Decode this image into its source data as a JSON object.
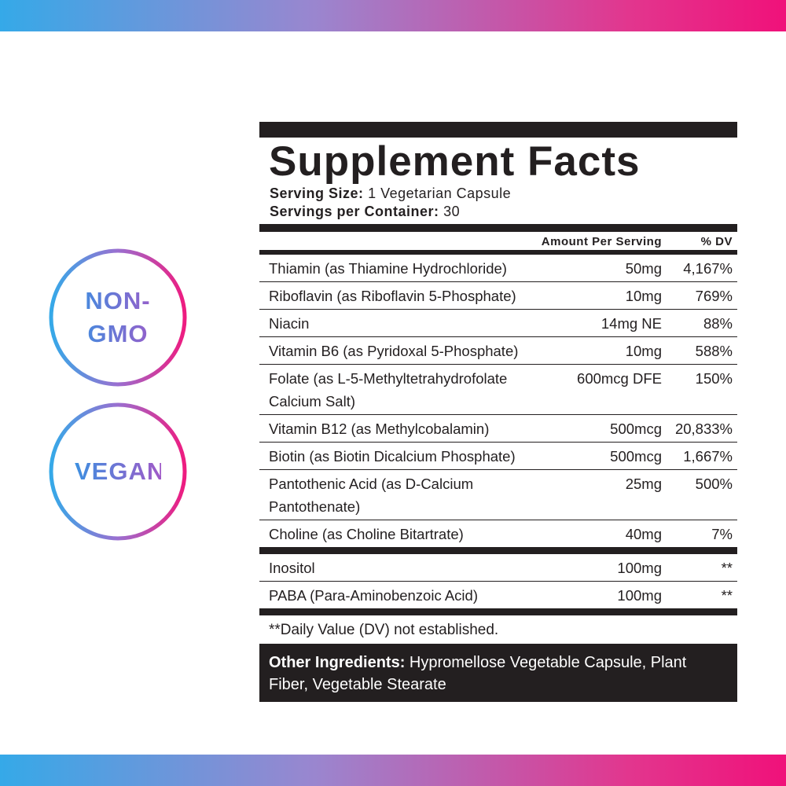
{
  "badges": [
    "NON-GMO",
    "VEGAN"
  ],
  "facts": {
    "title": "Supplement Facts",
    "serving_size_label": "Serving Size:",
    "serving_size": "1 Vegetarian Capsule",
    "servings_label": "Servings per Container:",
    "servings": "30",
    "header_amount": "Amount Per Serving",
    "header_dv": "% DV",
    "nutrients": [
      [
        "Thiamin (as Thiamine Hydrochloride)",
        "50mg",
        "4,167%"
      ],
      [
        "Riboflavin (as Riboflavin 5-Phosphate)",
        "10mg",
        "769%"
      ],
      [
        "Niacin",
        "14mg NE",
        "88%"
      ],
      [
        "Vitamin B6 (as Pyridoxal 5-Phosphate)",
        "10mg",
        "588%"
      ],
      [
        "Folate (as L-5-Methyltetrahydrofolate Calcium Salt)",
        "600mcg DFE",
        "150%"
      ],
      [
        "Vitamin B12 (as Methylcobalamin)",
        "500mcg",
        "20,833%"
      ],
      [
        "Biotin (as Biotin Dicalcium Phosphate)",
        "500mcg",
        "1,667%"
      ],
      [
        "Pantothenic Acid (as D-Calcium Pantothenate)",
        "25mg",
        "500%"
      ],
      [
        "Choline (as Choline Bitartrate)",
        "40mg",
        "7%"
      ]
    ],
    "other_nutrients": [
      [
        "Inositol",
        "100mg",
        "**"
      ],
      [
        "PABA (Para-Aminobenzoic Acid)",
        "100mg",
        "**"
      ]
    ],
    "footnote": "**Daily Value (DV) not established.",
    "other_ingredients_label": "Other Ingredients:",
    "other_ingredients": "Hypromellose Vegetable Capsule, Plant Fiber, Vegetable Stearate"
  }
}
